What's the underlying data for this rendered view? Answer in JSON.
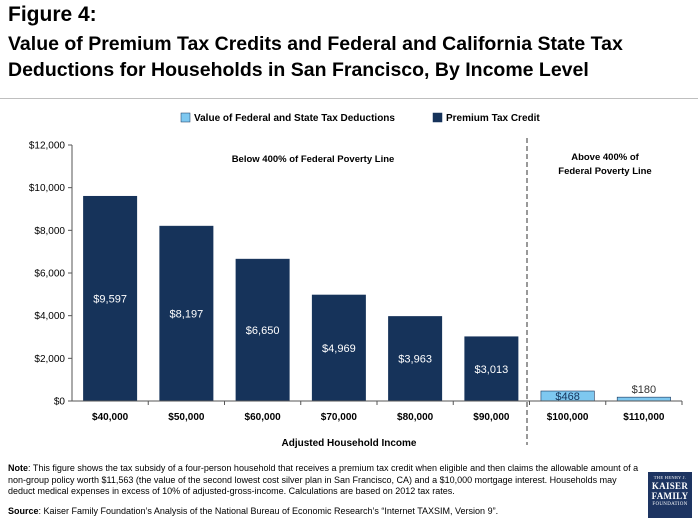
{
  "figure_label": "Figure 4:",
  "title": "Value of Premium Tax Credits and Federal and California State Tax Deductions for Households in San Francisco, By Income Level",
  "note": {
    "label": "Note",
    "text": ": This figure shows the tax subsidy of a four-person household that receives a premium tax credit when eligible and then claims the allowable amount of a non-group policy worth $11,563 (the value of the second lowest cost silver plan in San Francisco, CA) and a $10,000 mortgage interest. Households may deduct medical expenses in excess of 10% of adjusted-gross-income. Calculations are based on 2012 tax rates."
  },
  "source": {
    "label": "Source",
    "text": ":  Kaiser Family Foundation’s Analysis of the National Bureau of Economic Research’s “Internet TAXSIM, Version 9”."
  },
  "logo": {
    "line1": "THE HENRY J.",
    "line2": "KAISER",
    "line3": "FAMILY",
    "line4": "FOUNDATION"
  },
  "chart_data": {
    "type": "bar",
    "title": "",
    "xlabel": "Adjusted Household Income",
    "ylabel": "",
    "ylim": [
      0,
      12000
    ],
    "yticks": [
      "$0",
      "$2,000",
      "$4,000",
      "$6,000",
      "$8,000",
      "$10,000",
      "$12,000"
    ],
    "ytick_values": [
      0,
      2000,
      4000,
      6000,
      8000,
      10000,
      12000
    ],
    "categories": [
      "$40,000",
      "$50,000",
      "$60,000",
      "$70,000",
      "$80,000",
      "$90,000",
      "$100,000",
      "$110,000"
    ],
    "series": [
      {
        "name": "Value of Federal and State Tax Deductions",
        "color": "#7ec8f0",
        "values": [
          null,
          null,
          null,
          null,
          null,
          null,
          468,
          180
        ],
        "labels": [
          "",
          "",
          "",
          "",
          "",
          "",
          "$468",
          "$180"
        ]
      },
      {
        "name": "Premium Tax Credit",
        "color": "#16335a",
        "values": [
          9597,
          8197,
          6650,
          4969,
          3963,
          3013,
          null,
          null
        ],
        "labels": [
          "$9,597",
          "$8,197",
          "$6,650",
          "$4,969",
          "$3,963",
          "$3,013",
          "",
          ""
        ]
      }
    ],
    "legend_position": "top",
    "grid": false,
    "annotations": [
      "Below 400% of Federal Poverty Line",
      "Above 400% of",
      "Federal Poverty Line"
    ]
  }
}
